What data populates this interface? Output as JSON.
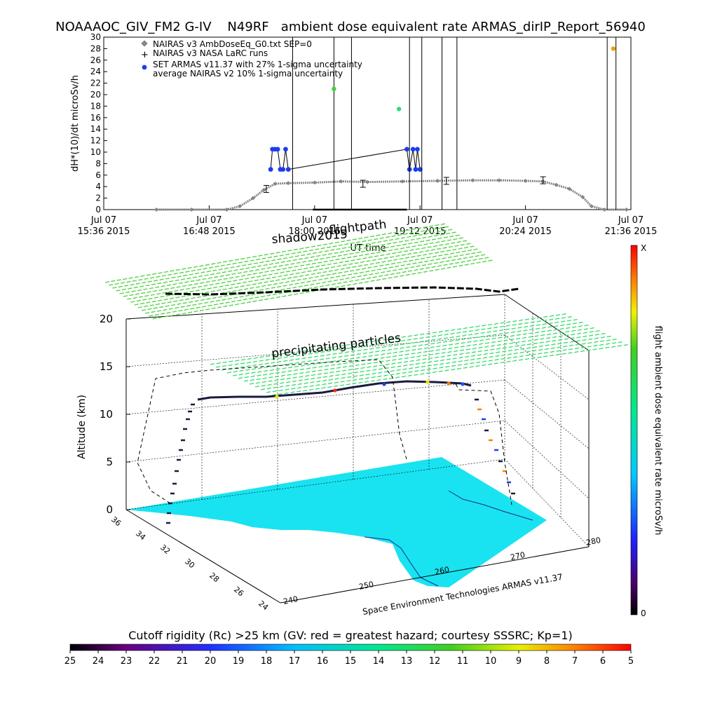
{
  "title": "NOAAAOC_GIV_FM2 G-IV    N49RF   ambient dose equivalent rate ARMAS_dirIP_Report_56940",
  "chart_data": [
    {
      "type": "line",
      "ylabel": "dH*(10)/dt microSv/h",
      "xlabel": "UT time",
      "ylim": [
        0,
        30
      ],
      "yticks": [
        "0",
        "2",
        "4",
        "6",
        "8",
        "10",
        "12",
        "14",
        "16",
        "18",
        "20",
        "22",
        "24",
        "26",
        "28",
        "30"
      ],
      "xticks": [
        {
          "l1": "Jul 07",
          "l2": "15:36 2015",
          "h": 15.6
        },
        {
          "l1": "Jul 07",
          "l2": "16:48 2015",
          "h": 16.8
        },
        {
          "l1": "Jul 07",
          "l2": "18:00 2015",
          "h": 18.0
        },
        {
          "l1": "Jul 07",
          "l2": "19:12 2015",
          "h": 19.2
        },
        {
          "l1": "Jul 07",
          "l2": "20:24 2015",
          "h": 20.4
        },
        {
          "l1": "Jul 07",
          "l2": "21:36 2015",
          "h": 21.6
        }
      ],
      "xlim_hours": [
        15.6,
        21.6
      ],
      "legend": [
        {
          "label": "NAIRAS v3 AmbDoseEq_G0.txt SEP=0",
          "marker": "diamond-gray"
        },
        {
          "label": "NAIRAS v3 NASA LaRC runs",
          "marker": "plus"
        },
        {
          "label": "SET ARMAS v11.37 with 27% 1-sigma uncertainty",
          "marker": "blue-dot"
        },
        {
          "label": "average NAIRAS v2 10% 1-sigma uncertainty",
          "marker": "none"
        }
      ],
      "series": [
        {
          "name": "NAIRAS v3 AmbDoseEq_G0.txt SEP=0",
          "points": [
            [
              16.2,
              0
            ],
            [
              16.6,
              0
            ],
            [
              17.0,
              0
            ],
            [
              17.15,
              0.6
            ],
            [
              17.3,
              2
            ],
            [
              17.42,
              3.4
            ],
            [
              17.55,
              4.5
            ],
            [
              17.7,
              4.6
            ],
            [
              18.0,
              4.7
            ],
            [
              18.3,
              4.9
            ],
            [
              18.6,
              4.8
            ],
            [
              19.0,
              4.9
            ],
            [
              19.4,
              5.0
            ],
            [
              19.8,
              5.1
            ],
            [
              20.1,
              5.1
            ],
            [
              20.4,
              5.0
            ],
            [
              20.6,
              4.9
            ],
            [
              20.75,
              4.3
            ],
            [
              20.9,
              3.6
            ],
            [
              21.05,
              2.2
            ],
            [
              21.15,
              0.6
            ],
            [
              21.3,
              0
            ],
            [
              21.55,
              0
            ]
          ]
        },
        {
          "name": "NAIRAS v3 NASA LaRC runs",
          "points": [
            [
              17.45,
              3.6
            ],
            [
              18.55,
              4.5
            ],
            [
              19.5,
              5.0
            ],
            [
              20.6,
              5.1
            ]
          ]
        },
        {
          "name": "SET ARMAS v11.37 with 27% 1-sigma uncertainty",
          "points": [
            [
              17.5,
              7
            ],
            [
              17.52,
              10.5
            ],
            [
              17.55,
              10.5
            ],
            [
              17.58,
              10.5
            ],
            [
              17.61,
              7
            ],
            [
              17.64,
              7
            ],
            [
              17.67,
              10.5
            ],
            [
              17.7,
              7
            ],
            [
              19.05,
              10.5
            ],
            [
              19.08,
              7
            ],
            [
              19.12,
              10.5
            ],
            [
              19.15,
              7
            ],
            [
              19.17,
              10.5
            ],
            [
              19.2,
              7
            ]
          ]
        },
        {
          "name": "spikes",
          "points": [
            [
              17.75,
              30
            ],
            [
              18.22,
              30
            ],
            [
              18.42,
              30
            ],
            [
              19.08,
              30
            ],
            [
              19.22,
              30
            ],
            [
              19.45,
              30
            ],
            [
              19.62,
              30
            ],
            [
              21.33,
              30
            ],
            [
              21.43,
              30
            ]
          ]
        },
        {
          "name": "green-markers",
          "points": [
            [
              18.22,
              21
            ],
            [
              18.96,
              17.5
            ],
            [
              21.4,
              28
            ]
          ]
        }
      ]
    },
    {
      "type": "scatter",
      "ylabel": "Altitude (km)",
      "zticks": [
        "0",
        "5",
        "10",
        "15",
        "20"
      ],
      "lat_ticks": [
        "36",
        "34",
        "32",
        "30",
        "28",
        "26",
        "24"
      ],
      "lon_ticks": [
        "240",
        "250",
        "260",
        "270",
        "280"
      ],
      "annotations": [
        "shadow2015",
        "flightpath",
        "precipitating particles"
      ],
      "credit": "Space Environment Technologies ARMAS v11.37"
    }
  ],
  "right_colorbar": {
    "label": "flight ambient dose equivalent rate microSv/h",
    "top": "X",
    "bottom": "0"
  },
  "bottom_colorbar": {
    "label": "Cutoff rigidity (Rc) >25 km (GV: red = greatest hazard; courtesy SSSRC; Kp=1)",
    "ticks": [
      "25",
      "24",
      "23",
      "22",
      "21",
      "20",
      "19",
      "18",
      "17",
      "16",
      "15",
      "14",
      "13",
      "12",
      "11",
      "10",
      "9",
      "8",
      "7",
      "6",
      "5"
    ]
  },
  "colors": {
    "map_fill": "#19e3f0",
    "shadow_green": "#57d24b",
    "particles_green": "#3bdc6f",
    "armas_blue": "#1c3cf0",
    "nairas_gray": "#8a8a8a"
  }
}
